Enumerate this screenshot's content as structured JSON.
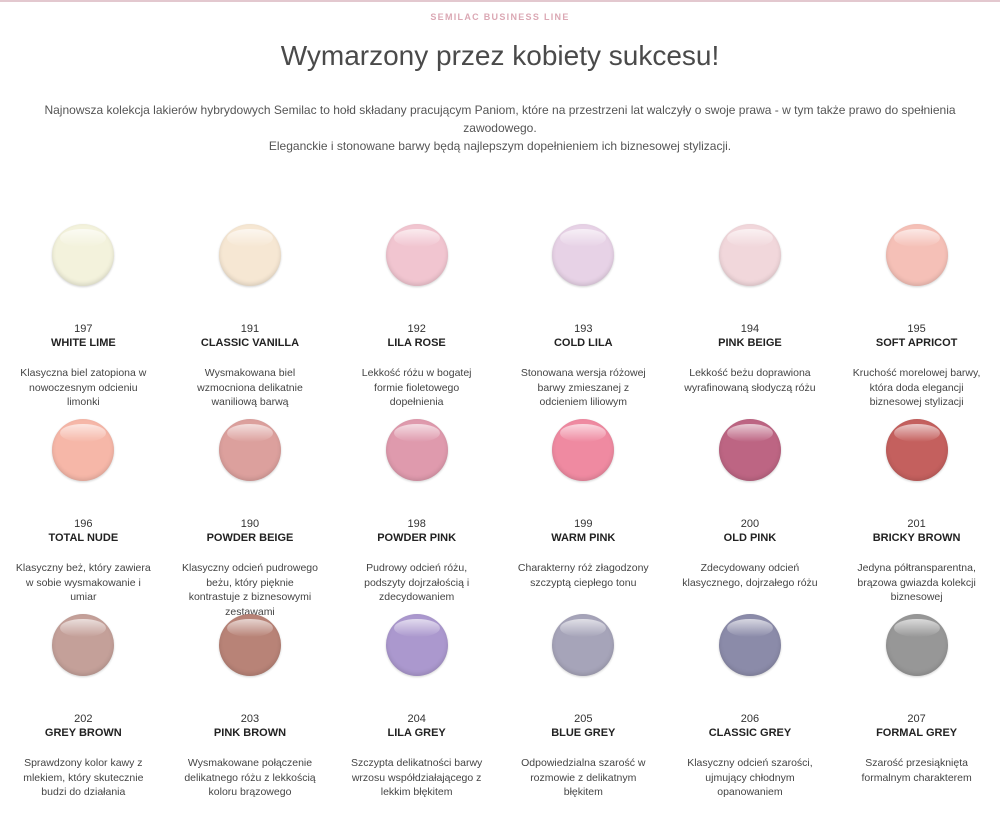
{
  "header": {
    "brand": "SEMILAC BUSINESS LINE",
    "title": "Wymarzony przez kobiety sukcesu!",
    "intro_line1": "Najnowsza kolekcja lakierów hybrydowych Semilac to hołd składany pracującym Paniom, które na przestrzeni lat walczyły o swoje prawa - w tym także prawo do spełnienia zawodowego.",
    "intro_line2": "Eleganckie i stonowane barwy będą najlepszym dopełnieniem ich biznesowej stylizacji."
  },
  "colors": {
    "topline": "#e3c8cf",
    "brand_text": "#dba8b4"
  },
  "products": [
    {
      "code": "197",
      "name": "WHITE LIME",
      "description": "Klasyczna biel zatopiona w nowoczesnym odcieniu limonki",
      "color": "#f3f2dc"
    },
    {
      "code": "191",
      "name": "CLASSIC VANILLA",
      "description": "Wysmakowana biel wzmocniona delikatnie waniliową barwą",
      "color": "#f6e7d3"
    },
    {
      "code": "192",
      "name": "LILA ROSE",
      "description": "Lekkość różu w bogatej formie fioletowego dopełnienia",
      "color": "#f1c5d0"
    },
    {
      "code": "193",
      "name": "COLD LILA",
      "description": "Stonowana wersja różowej barwy zmieszanej z odcieniem liliowym",
      "color": "#e7d2e6"
    },
    {
      "code": "194",
      "name": "PINK BEIGE",
      "description": "Lekkość beżu doprawiona wyrafinowaną słodyczą różu",
      "color": "#f1d7db"
    },
    {
      "code": "195",
      "name": "SOFT APRICOT",
      "description": "Kruchość morelowej barwy, która doda elegancji biznesowej stylizacji",
      "color": "#f5c0b7"
    },
    {
      "code": "196",
      "name": "TOTAL NUDE",
      "description": "Klasyczny beż, który zawiera w sobie wysmakowanie i umiar",
      "color": "#f6b7a8"
    },
    {
      "code": "190",
      "name": "POWDER BEIGE",
      "description": "Klasyczny odcień pudrowego beżu, który pięknie kontrastuje z biznesowymi zestawami",
      "color": "#dca09d"
    },
    {
      "code": "198",
      "name": "POWDER PINK",
      "description": "Pudrowy odcień różu, podszyty dojrzałością i zdecydowaniem",
      "color": "#df9aad"
    },
    {
      "code": "199",
      "name": "WARM PINK",
      "description": "Charakterny róż złagodzony szczyptą ciepłego tonu",
      "color": "#ef8aa1"
    },
    {
      "code": "200",
      "name": "OLD PINK",
      "description": "Zdecydowany odcień klasycznego, dojrzałego różu",
      "color": "#bd6583"
    },
    {
      "code": "201",
      "name": "BRICKY BROWN",
      "description": "Jedyna półtransparentna, brązowa gwiazda kolekcji biznesowej",
      "color": "#c4605e"
    },
    {
      "code": "202",
      "name": "GREY BROWN",
      "description": "Sprawdzony kolor kawy z mlekiem, który skutecznie budzi do działania",
      "color": "#c4a099"
    },
    {
      "code": "203",
      "name": "PINK BROWN",
      "description": "Wysmakowane połączenie delikatnego różu z lekkością koloru brązowego",
      "color": "#b88377"
    },
    {
      "code": "204",
      "name": "LILA GREY",
      "description": "Szczypta delikatności barwy wrzosu współdziałającego z lekkim błękitem",
      "color": "#ab98ce"
    },
    {
      "code": "205",
      "name": "BLUE GREY",
      "description": "Odpowiedzialna szarość w rozmowie z delikatnym błękitem",
      "color": "#a6a4b9"
    },
    {
      "code": "206",
      "name": "CLASSIC GREY",
      "description": "Klasyczny odcień szarości, ujmujący chłodnym opanowaniem",
      "color": "#8b8ba9"
    },
    {
      "code": "207",
      "name": "FORMAL GREY",
      "description": "Szarość przesiąknięta formalnym charakterem",
      "color": "#979797"
    }
  ]
}
